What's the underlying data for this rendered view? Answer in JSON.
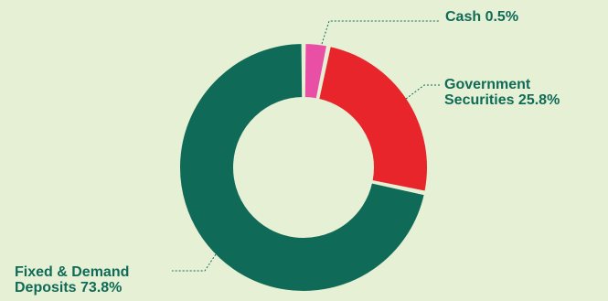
{
  "chart_data": {
    "type": "pie",
    "variant": "donut",
    "slices": [
      {
        "label": "Cash",
        "value": 0.5,
        "value_label": "0.5%",
        "color": "#e94fa4"
      },
      {
        "label": "Government Securities",
        "value": 25.8,
        "value_label": "25.8%",
        "color": "#e8252b"
      },
      {
        "label": "Fixed & Demand Deposits",
        "value": 73.8,
        "value_label": "73.8%",
        "color": "#0f6b58"
      }
    ],
    "callouts": {
      "cash": {
        "line1": "Cash 0.5%"
      },
      "gov": {
        "line1": "Government",
        "line2": "Securities 25.8%"
      },
      "fixed": {
        "line1": "Fixed & Demand",
        "line2": "Deposits 73.8%"
      }
    },
    "label_color": "#0f6b58",
    "background": "#e6f0d5"
  }
}
